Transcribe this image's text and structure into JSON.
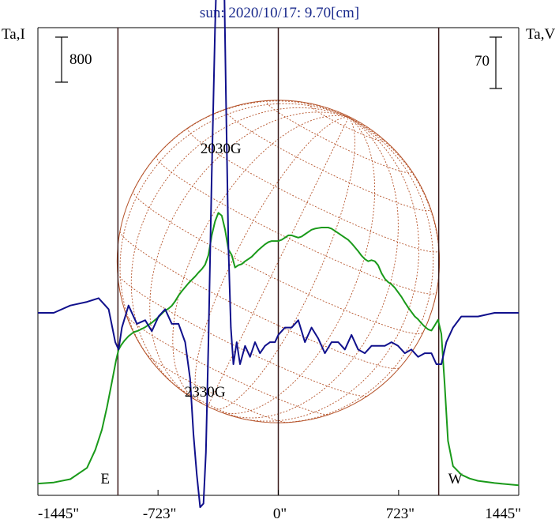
{
  "chart_data": {
    "type": "line",
    "title": "sun: 2020/10/17: 9.70[cm]",
    "left_axis_label": "Ta,I",
    "right_axis_label": "Ta,V",
    "left_scale_bar": "800",
    "right_scale_bar": "70",
    "x_ticks": [
      "-1445\"",
      "-723\"",
      "0\"",
      "723\"",
      "1445\""
    ],
    "x_tick_values": [
      -1445,
      -723,
      0,
      723,
      1445
    ],
    "xlim": [
      -1445,
      1445
    ],
    "limb_markers": [
      {
        "label": "E",
        "x": -964
      },
      {
        "label": "W",
        "x": 964
      }
    ],
    "center_marker": 0,
    "annotations": [
      {
        "text": "2030G",
        "x": -345,
        "series": "I"
      },
      {
        "text": "2330G",
        "x": -440,
        "series": "V"
      }
    ],
    "series": [
      {
        "key": "I",
        "color": "#1a9a1a",
        "x": [
          -1445,
          -1350,
          -1250,
          -1150,
          -1100,
          -1060,
          -1030,
          -1000,
          -975,
          -960,
          -945,
          -925,
          -900,
          -870,
          -840,
          -800,
          -760,
          -720,
          -690,
          -660,
          -640,
          -620,
          -600,
          -580,
          -560,
          -540,
          -520,
          -500,
          -480,
          -460,
          -440,
          -420,
          -400,
          -380,
          -360,
          -340,
          -320,
          -300,
          -280,
          -260,
          -240,
          -220,
          -200,
          -180,
          -160,
          -140,
          -120,
          -100,
          -80,
          -60,
          -40,
          -20,
          0,
          20,
          40,
          60,
          80,
          100,
          120,
          140,
          160,
          180,
          200,
          220,
          240,
          260,
          280,
          300,
          320,
          340,
          360,
          380,
          400,
          420,
          440,
          460,
          480,
          500,
          520,
          540,
          560,
          580,
          600,
          620,
          640,
          660,
          680,
          700,
          720,
          740,
          760,
          780,
          800,
          820,
          840,
          860,
          880,
          900,
          920,
          940,
          960,
          980,
          1000,
          1020,
          1050,
          1100,
          1150,
          1200,
          1300,
          1445
        ],
        "y": [
          40,
          60,
          120,
          320,
          640,
          1000,
          1400,
          1850,
          2230,
          2420,
          2500,
          2580,
          2660,
          2730,
          2760,
          2820,
          2900,
          3000,
          3090,
          3150,
          3200,
          3280,
          3380,
          3460,
          3530,
          3600,
          3660,
          3720,
          3790,
          3850,
          3930,
          4100,
          4450,
          4700,
          4850,
          4800,
          4550,
          4200,
          4100,
          3880,
          3920,
          3940,
          3990,
          4030,
          4070,
          4130,
          4190,
          4240,
          4290,
          4330,
          4350,
          4350,
          4350,
          4370,
          4410,
          4450,
          4450,
          4430,
          4410,
          4430,
          4470,
          4510,
          4550,
          4570,
          4580,
          4590,
          4590,
          4590,
          4570,
          4530,
          4490,
          4450,
          4410,
          4370,
          4310,
          4240,
          4170,
          4090,
          4030,
          3990,
          4010,
          3990,
          3920,
          3780,
          3680,
          3620,
          3580,
          3520,
          3440,
          3360,
          3260,
          3170,
          3090,
          3010,
          2960,
          2890,
          2830,
          2780,
          2760,
          2850,
          2950,
          2700,
          1800,
          800,
          350,
          200,
          130,
          90,
          50,
          10
        ]
      },
      {
        "key": "V",
        "color": "#10108c",
        "x": [
          -1445,
          -1350,
          -1250,
          -1150,
          -1080,
          -1020,
          -980,
          -960,
          -940,
          -900,
          -850,
          -800,
          -760,
          -720,
          -680,
          -640,
          -600,
          -560,
          -530,
          -510,
          -490,
          -470,
          -450,
          -435,
          -420,
          -400,
          -380,
          -360,
          -345,
          -330,
          -315,
          -300,
          -285,
          -270,
          -250,
          -230,
          -200,
          -170,
          -140,
          -110,
          -80,
          -50,
          -20,
          0,
          40,
          80,
          120,
          160,
          200,
          240,
          280,
          320,
          360,
          400,
          440,
          480,
          520,
          560,
          600,
          640,
          680,
          720,
          760,
          800,
          840,
          880,
          920,
          950,
          980,
          1010,
          1050,
          1100,
          1200,
          1300,
          1445
        ],
        "y": [
          0,
          0,
          10,
          15,
          20,
          5,
          -40,
          -50,
          -20,
          10,
          -15,
          -10,
          -25,
          -5,
          5,
          -15,
          -15,
          -40,
          -90,
          -165,
          -220,
          -265,
          -260,
          -190,
          -40,
          190,
          390,
          540,
          590,
          520,
          300,
          90,
          -20,
          -70,
          -40,
          -70,
          -45,
          -60,
          -40,
          -55,
          -45,
          -40,
          -40,
          -30,
          -20,
          -20,
          -10,
          -40,
          -20,
          -35,
          -55,
          -40,
          -40,
          -50,
          -30,
          -50,
          -55,
          -45,
          -45,
          -45,
          -40,
          -45,
          -55,
          -50,
          -60,
          -55,
          -55,
          -70,
          -70,
          -40,
          -20,
          -5,
          -5,
          0,
          0
        ]
      }
    ]
  }
}
